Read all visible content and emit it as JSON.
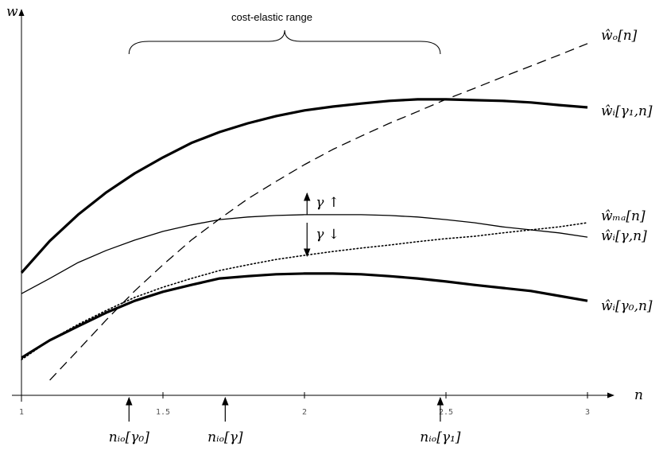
{
  "chart_data": {
    "type": "line",
    "x_label": "n",
    "y_label": "w",
    "x": [
      1.0,
      1.1,
      1.2,
      1.3,
      1.4,
      1.5,
      1.6,
      1.7,
      1.8,
      1.9,
      2.0,
      2.1,
      2.2,
      2.3,
      2.4,
      2.5,
      2.6,
      2.7,
      2.8,
      2.9,
      3.0
    ],
    "xlim": [
      1,
      3
    ],
    "xticks": [
      1,
      1.5,
      2,
      2.5,
      3
    ],
    "ylim": [
      0,
      10
    ],
    "series": [
      {
        "name": "ŵₒ[n]",
        "color": "#000000",
        "style": "dashed",
        "line_width": 1.3,
        "values": [
          null,
          0.4,
          1.19,
          1.99,
          2.75,
          3.44,
          4.09,
          4.65,
          5.18,
          5.64,
          6.08,
          6.48,
          6.83,
          7.17,
          7.48,
          7.8,
          8.09,
          8.39,
          8.68,
          8.97,
          9.27
        ]
      },
      {
        "name": "ŵᵢ[γ₁,n]",
        "color": "#000000",
        "style": "solid",
        "line_width": 3.2,
        "values": [
          3.23,
          4.07,
          4.76,
          5.35,
          5.85,
          6.27,
          6.65,
          6.94,
          7.17,
          7.36,
          7.51,
          7.61,
          7.69,
          7.76,
          7.8,
          7.8,
          7.78,
          7.76,
          7.72,
          7.65,
          7.59
        ]
      },
      {
        "name": "ŵₘₐ[n]",
        "color": "#000000",
        "style": "dotted",
        "line_width": 1.6,
        "values": [
          0.94,
          1.45,
          1.87,
          2.24,
          2.58,
          2.85,
          3.08,
          3.29,
          3.44,
          3.58,
          3.69,
          3.79,
          3.88,
          3.96,
          4.05,
          4.13,
          4.19,
          4.28,
          4.36,
          4.44,
          4.55
        ]
      },
      {
        "name": "ŵᵢ[γ,n]",
        "color": "#000000",
        "style": "solid",
        "line_width": 1.3,
        "values": [
          2.68,
          3.08,
          3.5,
          3.82,
          4.09,
          4.32,
          4.49,
          4.63,
          4.7,
          4.74,
          4.76,
          4.76,
          4.76,
          4.74,
          4.7,
          4.63,
          4.55,
          4.44,
          4.36,
          4.28,
          4.17
        ]
      },
      {
        "name": "ŵᵢ[γ₀,n]",
        "color": "#000000",
        "style": "solid",
        "line_width": 3.2,
        "values": [
          0.99,
          1.45,
          1.82,
          2.18,
          2.49,
          2.73,
          2.91,
          3.08,
          3.14,
          3.19,
          3.21,
          3.21,
          3.19,
          3.14,
          3.08,
          3.0,
          2.91,
          2.83,
          2.75,
          2.62,
          2.49
        ]
      }
    ],
    "range_label": "cost-elastic range",
    "shift_labels": [
      "γ ↑",
      "γ ↓"
    ],
    "markers": [
      {
        "text": "nᵢₒ[γ₀]",
        "x": 1.38
      },
      {
        "text": "nᵢₒ[γ]",
        "x": 1.72
      },
      {
        "text": "nᵢₒ[γ₁]",
        "x": 2.48
      }
    ]
  }
}
